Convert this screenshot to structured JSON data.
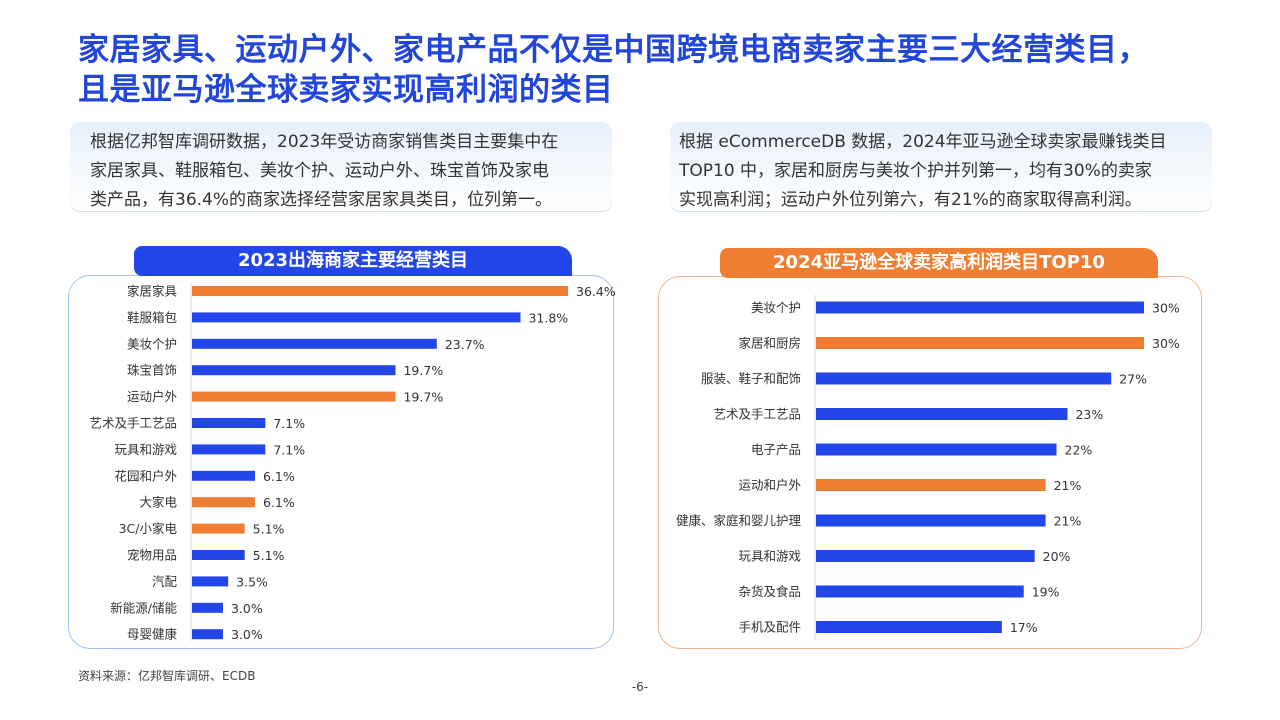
{
  "title": {
    "line1": "家居家具、运动户外、家电产品不仅是中国跨境电商卖家主要三大经营类目，",
    "line2": "且是亚马逊全球卖家实现高利润的类目"
  },
  "left_text": {
    "line1": "根据亿邦智库调研数据，2023年受访商家销售类目主要集中在",
    "line2": "家居家具、鞋服箱包、美妆个护、运动户外、珠宝首饰及家电",
    "line3": "类产品，有36.4%的商家选择经营家居家具类目，位列第一。"
  },
  "right_text": {
    "line1": "根据 eCommerceDB 数据，2024年亚马逊全球卖家最赚钱类目",
    "line2": "TOP10 中，家居和厨房与美妆个护并列第一，均有30%的卖家",
    "line3": "实现高利润；运动户外位列第六，有21%的商家取得高利润。"
  },
  "source": "资料来源：亿邦智库调研、ECDB",
  "page_number": "-6-",
  "colors": {
    "blue": "#2246e8",
    "orange": "#ef7d32",
    "title": "#2247d8"
  },
  "chart_data": [
    {
      "type": "bar",
      "orientation": "horizontal",
      "title": "2023出海商家主要经营类目",
      "categories": [
        "家居家具",
        "鞋服箱包",
        "美妆个护",
        "珠宝首饰",
        "运动户外",
        "艺术及手工艺品",
        "玩具和游戏",
        "花园和户外",
        "大家电",
        "3C/小家电",
        "宠物用品",
        "汽配",
        "新能源/储能",
        "母婴健康"
      ],
      "values": [
        36.4,
        31.8,
        23.7,
        19.7,
        19.7,
        7.1,
        7.1,
        6.1,
        6.1,
        5.1,
        5.1,
        3.5,
        3.0,
        3.0
      ],
      "labels": [
        "36.4%",
        "31.8%",
        "23.7%",
        "19.7%",
        "19.7%",
        "7.1%",
        "7.1%",
        "6.1%",
        "6.1%",
        "5.1%",
        "5.1%",
        "3.5%",
        "3.0%",
        "3.0%"
      ],
      "highlight": [
        true,
        false,
        false,
        false,
        true,
        false,
        false,
        false,
        true,
        true,
        false,
        false,
        false,
        false
      ],
      "unit": "%",
      "xlim": [
        0,
        36.4
      ],
      "grid": false,
      "legend": "none"
    },
    {
      "type": "bar",
      "orientation": "horizontal",
      "title": "2024亚马逊全球卖家高利润类目TOP10",
      "categories": [
        "美妆个护",
        "家居和厨房",
        "服装、鞋子和配饰",
        "艺术及手工艺品",
        "电子产品",
        "运动和户外",
        "健康、家庭和婴儿护理",
        "玩具和游戏",
        "杂货及食品",
        "手机及配件"
      ],
      "values": [
        30,
        30,
        27,
        23,
        22,
        21,
        21,
        20,
        19,
        17
      ],
      "labels": [
        "30%",
        "30%",
        "27%",
        "23%",
        "22%",
        "21%",
        "21%",
        "20%",
        "19%",
        "17%"
      ],
      "highlight": [
        false,
        true,
        false,
        false,
        false,
        true,
        false,
        false,
        false,
        false
      ],
      "unit": "%",
      "xlim": [
        0,
        30
      ],
      "grid": false,
      "legend": "none"
    }
  ]
}
